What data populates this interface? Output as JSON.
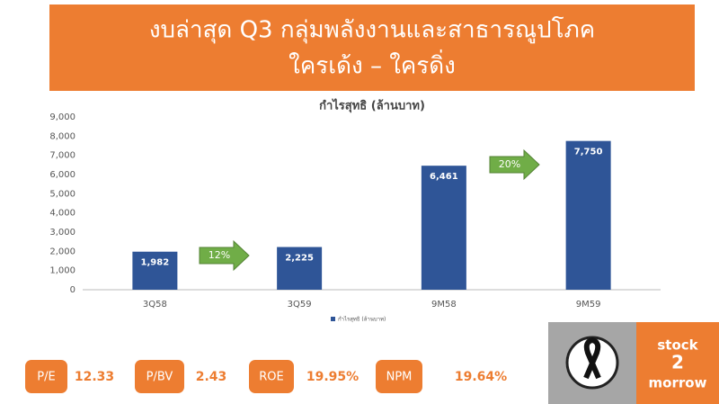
{
  "header": {
    "lines": [
      "งบล่าสุด Q3 กลุ่มพลังงานและสาธารณูปโภค",
      "ใครเด้ง – ใครดิ่ง"
    ]
  },
  "chart_data": {
    "type": "bar",
    "title": "กำไรสุทธิ (ล้านบาท)",
    "categories": [
      "3Q58",
      "3Q59",
      "9M58",
      "9M59"
    ],
    "series": [
      {
        "name": "กำไรสุทธิ (ล้านบาท)",
        "color": "#2f5597",
        "values": [
          1982,
          2225,
          6461,
          7750
        ],
        "value_labels": [
          "1,982",
          "2,225",
          "6,461",
          "7,750"
        ]
      }
    ],
    "ylim": [
      0,
      9000
    ],
    "yticks": [
      0,
      {
        "value": 1000,
        "label": "1,000"
      },
      {
        "value": 2000,
        "label": "2,000"
      },
      {
        "value": 3000,
        "label": "3,000"
      },
      {
        "value": 4000,
        "label": "4,000"
      },
      {
        "value": 5000,
        "label": "5,000"
      },
      {
        "value": 6000,
        "label": "6,000"
      },
      {
        "value": 7000,
        "label": "7,000"
      },
      {
        "value": 8000,
        "label": "8,000"
      },
      {
        "value": 9000,
        "label": "9,000"
      }
    ],
    "grid": false,
    "annotations": [
      {
        "text": "12%"
      },
      {
        "text": "20%"
      }
    ]
  },
  "metrics": [
    {
      "label": "P/E",
      "value": "12.33"
    },
    {
      "label": "P/BV",
      "value": "2.43"
    },
    {
      "label": "ROE",
      "value": "19.95%"
    },
    {
      "label": "NPM",
      "value": "19.64%"
    }
  ],
  "logo": {
    "lines": [
      "stock",
      "2",
      "morrow"
    ]
  }
}
